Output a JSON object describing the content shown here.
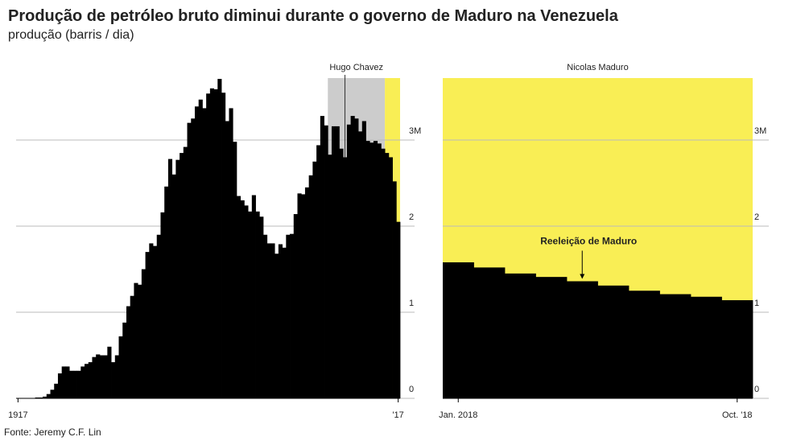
{
  "title": "Produção de petróleo bruto diminui durante o governo de Maduro na Venezuela",
  "subtitle": "produção (barris / dia)",
  "source": "Fonte: Jeremy C.F. Lin",
  "chart_data": [
    {
      "type": "bar",
      "color": "#000000",
      "x": [
        1917,
        1918,
        1919,
        1920,
        1921,
        1922,
        1923,
        1924,
        1925,
        1926,
        1927,
        1928,
        1929,
        1930,
        1931,
        1932,
        1933,
        1934,
        1935,
        1936,
        1937,
        1938,
        1939,
        1940,
        1941,
        1942,
        1943,
        1944,
        1945,
        1946,
        1947,
        1948,
        1949,
        1950,
        1951,
        1952,
        1953,
        1954,
        1955,
        1956,
        1957,
        1958,
        1959,
        1960,
        1961,
        1962,
        1963,
        1964,
        1965,
        1966,
        1967,
        1968,
        1969,
        1970,
        1971,
        1972,
        1973,
        1974,
        1975,
        1976,
        1977,
        1978,
        1979,
        1980,
        1981,
        1982,
        1983,
        1984,
        1985,
        1986,
        1987,
        1988,
        1989,
        1990,
        1991,
        1992,
        1993,
        1994,
        1995,
        1996,
        1997,
        1998,
        1999,
        2000,
        2001,
        2002,
        2003,
        2004,
        2005,
        2006,
        2007,
        2008,
        2009,
        2010,
        2011,
        2012,
        2013,
        2014,
        2015,
        2016,
        2017
      ],
      "values": [
        0,
        0,
        0,
        0,
        0,
        0.01,
        0.01,
        0.02,
        0.05,
        0.1,
        0.17,
        0.29,
        0.37,
        0.37,
        0.32,
        0.32,
        0.32,
        0.37,
        0.4,
        0.42,
        0.48,
        0.51,
        0.5,
        0.5,
        0.6,
        0.42,
        0.5,
        0.72,
        0.88,
        1.07,
        1.19,
        1.34,
        1.32,
        1.5,
        1.7,
        1.8,
        1.77,
        1.9,
        2.16,
        2.46,
        2.78,
        2.6,
        2.77,
        2.85,
        2.92,
        3.2,
        3.25,
        3.39,
        3.47,
        3.37,
        3.54,
        3.6,
        3.59,
        3.71,
        3.55,
        3.22,
        3.37,
        2.98,
        2.35,
        2.3,
        2.24,
        2.17,
        2.36,
        2.17,
        2.11,
        1.9,
        1.8,
        1.8,
        1.68,
        1.79,
        1.75,
        1.9,
        1.91,
        2.14,
        2.38,
        2.37,
        2.45,
        2.59,
        2.75,
        2.94,
        3.28,
        3.17,
        2.83,
        3.16,
        3.16,
        2.9,
        2.8,
        3.18,
        3.28,
        3.25,
        3.1,
        3.22,
        2.99,
        2.97,
        2.99,
        2.96,
        2.9,
        2.85,
        2.8,
        2.52,
        2.05
      ],
      "xlim": [
        1916.5,
        2017.5
      ],
      "xticks": [
        1917,
        {
          "value": 2017,
          "label": "'17"
        }
      ],
      "ylim": [
        0,
        3.72
      ],
      "yticks": [
        0,
        1,
        2,
        {
          "value": 3,
          "label": "3M"
        }
      ],
      "grid": true,
      "periods": [
        {
          "label": "Hugo Chavez",
          "start": 1999,
          "end": 2013,
          "color": "#cccccc",
          "marker_year": 2003
        },
        {
          "start": 2014,
          "end": 2017,
          "color": "#f9ee55"
        }
      ]
    },
    {
      "type": "bar",
      "color": "#000000",
      "title": "Nicolas Maduro",
      "background": "#f9ee55",
      "categories": [
        "Jan. 2018",
        null,
        null,
        null,
        null,
        null,
        null,
        null,
        null,
        "Oct. '18"
      ],
      "values": [
        1.58,
        1.52,
        1.45,
        1.41,
        1.36,
        1.31,
        1.25,
        1.21,
        1.18,
        1.14
      ],
      "ylim": [
        0,
        3.72
      ],
      "yticks": [
        0,
        1,
        2,
        {
          "value": 3,
          "label": "3M"
        }
      ],
      "grid": true,
      "annotation": {
        "text": "Reeleição de Maduro",
        "index": 4
      }
    }
  ]
}
